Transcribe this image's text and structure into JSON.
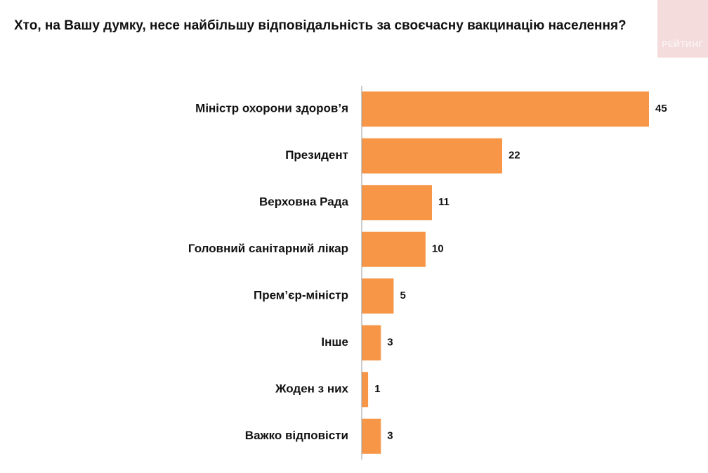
{
  "header": {
    "title": "Хто, на Вашу думку, несе найбільшу відповідальність за своєчасну вакцинацію населення?"
  },
  "logo": {
    "text": "РЕЙТИНГ"
  },
  "colors": {
    "bar": "#f79646",
    "axis": "#9a9a9a",
    "logo_bg": "#f4dcdc"
  },
  "chart_data": {
    "type": "bar",
    "orientation": "horizontal",
    "categories": [
      "Міністр охорони здоров’я",
      "Президент",
      "Верховна Рада",
      "Головний санітарний лікар",
      "Прем’єр-міністр",
      "Інше",
      "Жоден з них",
      "Важко відповісти"
    ],
    "values": [
      45,
      22,
      11,
      10,
      5,
      3,
      1,
      3
    ],
    "xlim": [
      0,
      45
    ],
    "grid": false,
    "legend": "none"
  }
}
